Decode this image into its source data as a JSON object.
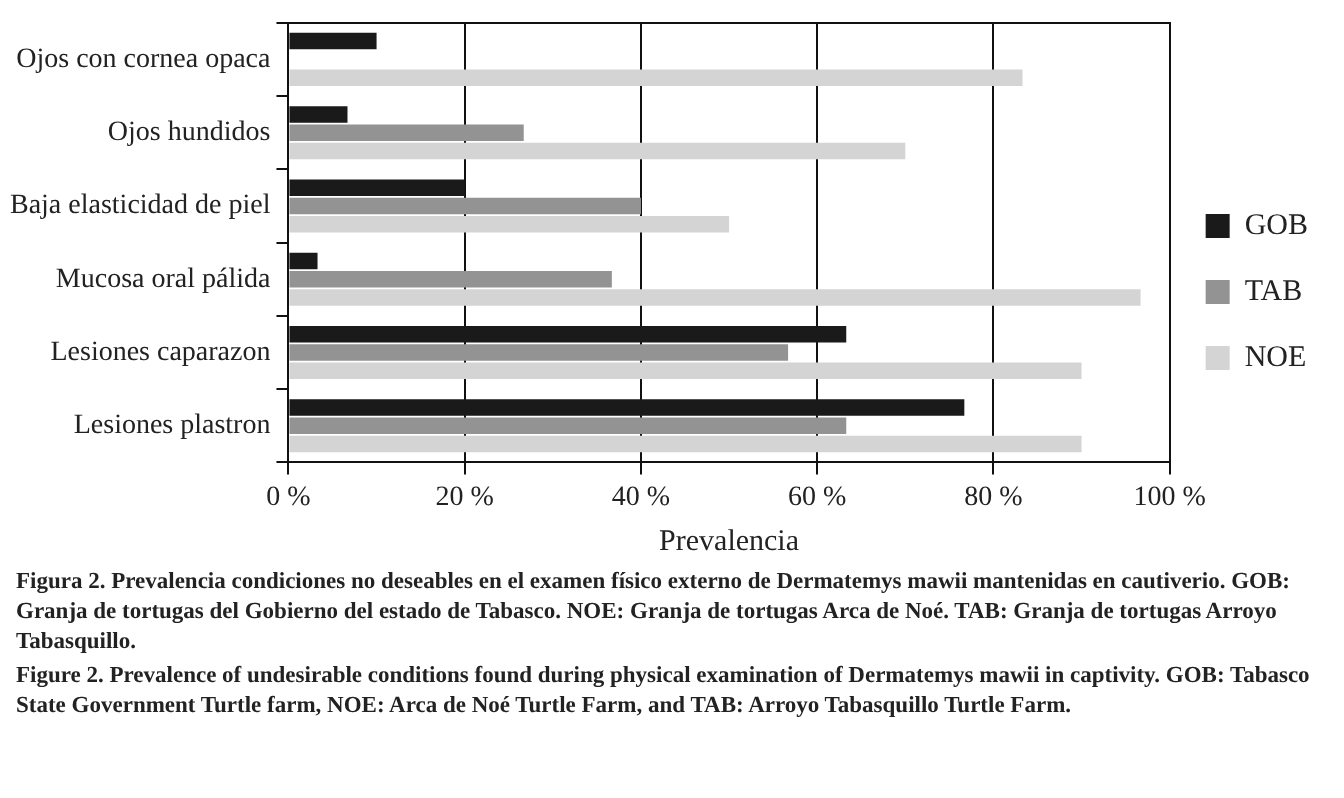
{
  "chart_data": {
    "type": "bar",
    "orientation": "horizontal",
    "xlabel": "Prevalencia",
    "categories": [
      "Ojos con cornea opaca",
      "Ojos hundidos",
      "Baja elasticidad de piel",
      "Mucosa oral pálida",
      "Lesiones caparazon",
      "Lesiones plastron"
    ],
    "series": [
      {
        "name": "GOB",
        "color": "#1a1a1a",
        "values": [
          10,
          6.7,
          20,
          3.3,
          63.3,
          76.7
        ]
      },
      {
        "name": "TAB",
        "color": "#939393",
        "values": [
          0,
          26.7,
          40,
          36.7,
          56.7,
          63.3
        ]
      },
      {
        "name": "NOE",
        "color": "#d4d4d4",
        "values": [
          83.3,
          70,
          50,
          96.7,
          90,
          90
        ]
      }
    ],
    "xlim": [
      0,
      100
    ],
    "xticks": [
      {
        "value": 0,
        "label": "0 %"
      },
      {
        "value": 20,
        "label": "20 %"
      },
      {
        "value": 40,
        "label": "40 %"
      },
      {
        "value": 60,
        "label": "60 %"
      },
      {
        "value": 80,
        "label": "80 %"
      },
      {
        "value": 100,
        "label": "100 %"
      }
    ],
    "grid": "x",
    "legend": "right",
    "annotations": [
      "Figura 2. Prevalencia condiciones no deseables en el examen físico externo de Dermatemys mawii mantenidas en cautiverio. GOB: Granja de tortugas del Gobierno del estado de Tabasco. NOE: Granja de tortugas Arca de Noé. TAB: Granja de tortugas Arroyo Tabasquillo.",
      "Figure 2. Prevalence of undesirable conditions found during physical examination of Dermatemys mawii in captivity. GOB: Tabasco State Government Turtle farm, NOE: Arca de Noé Turtle Farm, and TAB: Arroyo Tabasquillo Turtle Farm."
    ]
  }
}
